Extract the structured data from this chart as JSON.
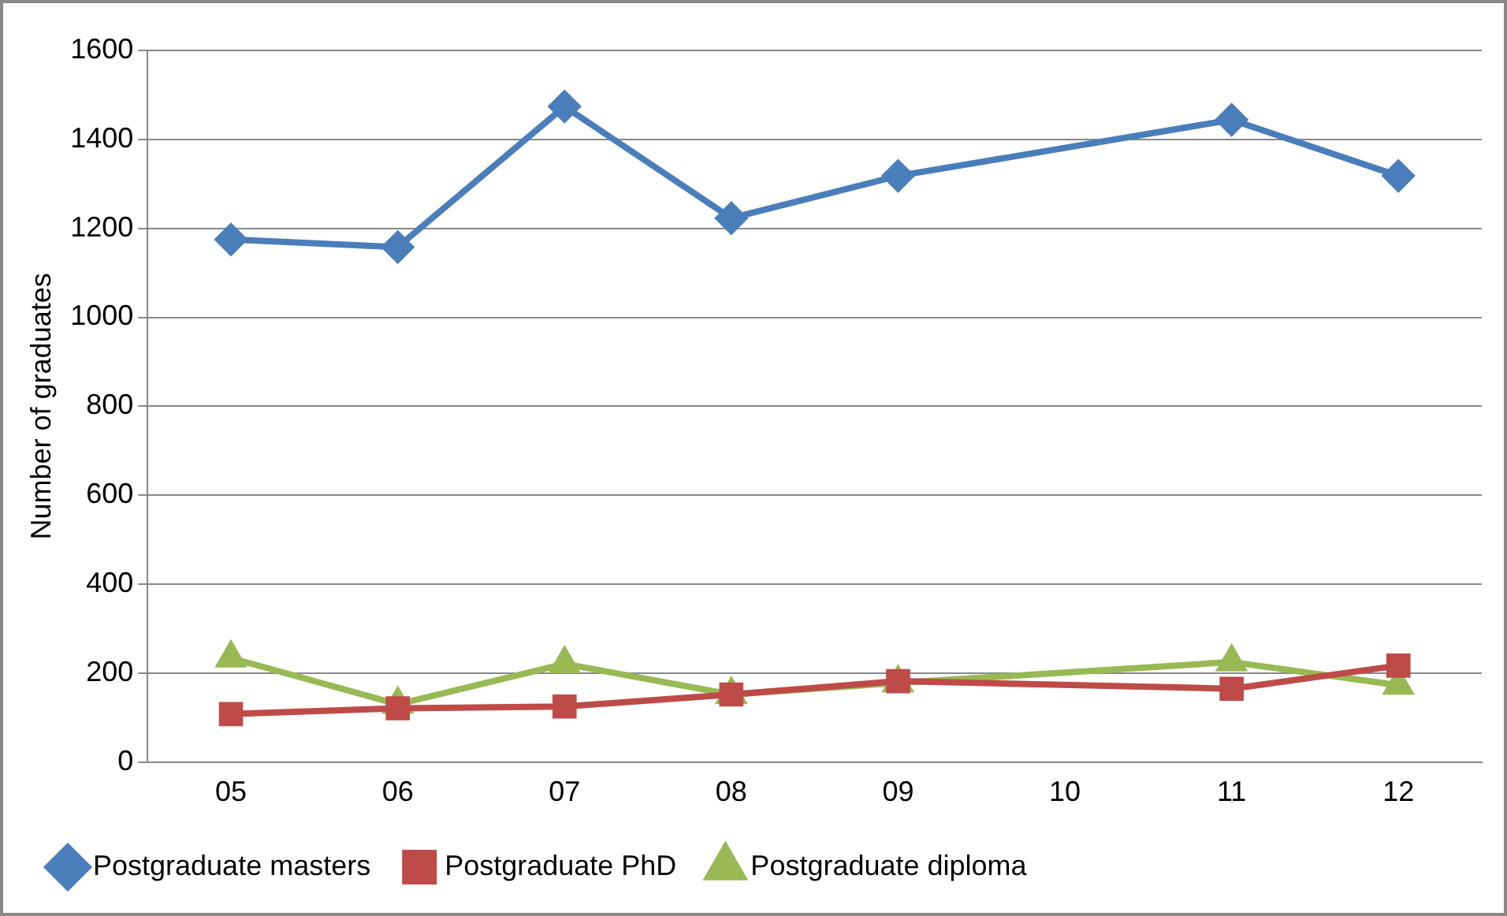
{
  "chart_data": {
    "type": "line",
    "ylabel": "Number of graduates",
    "categories": [
      "05",
      "06",
      "07",
      "08",
      "09",
      "10",
      "11",
      "12"
    ],
    "series": [
      {
        "name": "Postgraduate masters",
        "color": "#4a7ebb",
        "marker": "diamond",
        "values": [
          1175,
          1158,
          1474,
          1223,
          1318,
          null,
          1444,
          1318
        ]
      },
      {
        "name": "Postgraduate PhD",
        "color": "#be4b48",
        "marker": "square",
        "values": [
          108,
          121,
          125,
          152,
          182,
          null,
          165,
          217
        ]
      },
      {
        "name": "Postgraduate diploma",
        "color": "#98b954",
        "marker": "triangle",
        "values": [
          234,
          130,
          221,
          152,
          178,
          null,
          225,
          173
        ]
      }
    ],
    "ylim": [
      0,
      1600
    ],
    "yticks": [
      0,
      200,
      400,
      600,
      800,
      1000,
      1200,
      1400,
      1600
    ],
    "grid": "y",
    "legend": "bottom"
  }
}
